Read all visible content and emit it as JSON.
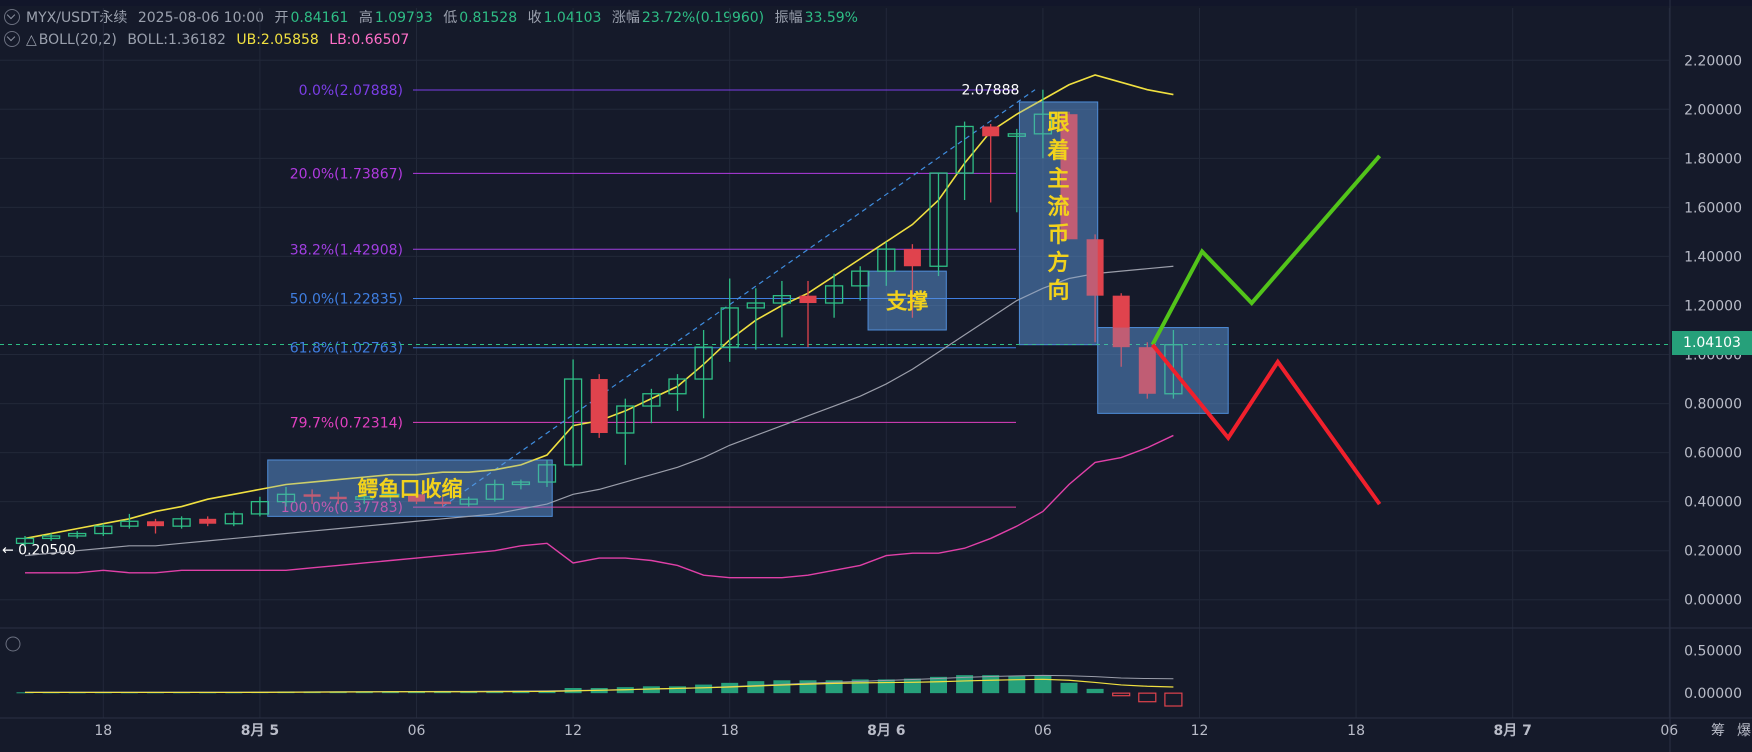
{
  "header": {
    "symbol": "MYX/USDT永续",
    "datetime": "2025-08-06 10:00",
    "open_label": "开",
    "open": "0.84161",
    "high_label": "高",
    "high": "1.09793",
    "low_label": "低",
    "low": "0.81528",
    "close_label": "收",
    "close": "1.04103",
    "change_label": "涨幅",
    "change": "23.72%(0.19960)",
    "amp_label": "振幅",
    "amp": "33.59%"
  },
  "indicator": {
    "name": "BOLL(20,2)",
    "boll": "BOLL:1.36182",
    "ub": "UB:2.05858",
    "lb": "LB:0.66507"
  },
  "colors": {
    "up": "#2ebd85",
    "down": "#e0434d",
    "mid": "#9b9eaa",
    "upper": "#f0e040",
    "lower": "#e040a8",
    "fib": "#8a3cf0"
  },
  "price_badge": "1.04103",
  "chart_data": {
    "type": "candlestick",
    "yaxis_ticks": [
      "2.20000",
      "2.00000",
      "1.80000",
      "1.60000",
      "1.40000",
      "1.20000",
      "1.00000",
      "0.80000",
      "0.60000",
      "0.40000",
      "0.20000",
      "0.00000"
    ],
    "ylim": [
      -0.05,
      2.25
    ],
    "xaxis_ticks": [
      {
        "label": "18",
        "i": 3
      },
      {
        "label": "8月 5",
        "i": 9
      },
      {
        "label": "06",
        "i": 15
      },
      {
        "label": "12",
        "i": 21
      },
      {
        "label": "18",
        "i": 27
      },
      {
        "label": "8月 6",
        "i": 33
      },
      {
        "label": "06",
        "i": 39
      },
      {
        "label": "12",
        "i": 45
      },
      {
        "label": "18",
        "i": 51
      },
      {
        "label": "8月 7",
        "i": 57
      },
      {
        "label": "06",
        "i": 63
      }
    ],
    "axis_footer": [
      "筹",
      "爆"
    ],
    "candles": [
      {
        "o": 0.23,
        "h": 0.26,
        "l": 0.22,
        "c": 0.25
      },
      {
        "o": 0.25,
        "h": 0.27,
        "l": 0.24,
        "c": 0.26
      },
      {
        "o": 0.26,
        "h": 0.28,
        "l": 0.25,
        "c": 0.27
      },
      {
        "o": 0.27,
        "h": 0.31,
        "l": 0.26,
        "c": 0.3
      },
      {
        "o": 0.3,
        "h": 0.35,
        "l": 0.29,
        "c": 0.32
      },
      {
        "o": 0.32,
        "h": 0.33,
        "l": 0.27,
        "c": 0.3
      },
      {
        "o": 0.3,
        "h": 0.34,
        "l": 0.29,
        "c": 0.33
      },
      {
        "o": 0.33,
        "h": 0.34,
        "l": 0.3,
        "c": 0.31
      },
      {
        "o": 0.31,
        "h": 0.36,
        "l": 0.3,
        "c": 0.35
      },
      {
        "o": 0.35,
        "h": 0.42,
        "l": 0.34,
        "c": 0.4
      },
      {
        "o": 0.4,
        "h": 0.46,
        "l": 0.38,
        "c": 0.43
      },
      {
        "o": 0.43,
        "h": 0.45,
        "l": 0.39,
        "c": 0.42
      },
      {
        "o": 0.42,
        "h": 0.44,
        "l": 0.39,
        "c": 0.41
      },
      {
        "o": 0.41,
        "h": 0.44,
        "l": 0.39,
        "c": 0.42
      },
      {
        "o": 0.42,
        "h": 0.45,
        "l": 0.4,
        "c": 0.43
      },
      {
        "o": 0.43,
        "h": 0.44,
        "l": 0.39,
        "c": 0.4
      },
      {
        "o": 0.4,
        "h": 0.42,
        "l": 0.38,
        "c": 0.39
      },
      {
        "o": 0.39,
        "h": 0.42,
        "l": 0.38,
        "c": 0.41
      },
      {
        "o": 0.41,
        "h": 0.49,
        "l": 0.4,
        "c": 0.47
      },
      {
        "o": 0.47,
        "h": 0.49,
        "l": 0.45,
        "c": 0.48
      },
      {
        "o": 0.48,
        "h": 0.57,
        "l": 0.46,
        "c": 0.55
      },
      {
        "o": 0.55,
        "h": 0.98,
        "l": 0.54,
        "c": 0.9
      },
      {
        "o": 0.9,
        "h": 0.92,
        "l": 0.66,
        "c": 0.68
      },
      {
        "o": 0.68,
        "h": 0.82,
        "l": 0.55,
        "c": 0.79
      },
      {
        "o": 0.79,
        "h": 0.86,
        "l": 0.72,
        "c": 0.84
      },
      {
        "o": 0.84,
        "h": 0.92,
        "l": 0.77,
        "c": 0.9
      },
      {
        "o": 0.9,
        "h": 1.1,
        "l": 0.74,
        "c": 1.03
      },
      {
        "o": 1.03,
        "h": 1.31,
        "l": 0.97,
        "c": 1.19
      },
      {
        "o": 1.19,
        "h": 1.27,
        "l": 1.02,
        "c": 1.21
      },
      {
        "o": 1.21,
        "h": 1.3,
        "l": 1.07,
        "c": 1.24
      },
      {
        "o": 1.24,
        "h": 1.3,
        "l": 1.03,
        "c": 1.21
      },
      {
        "o": 1.21,
        "h": 1.33,
        "l": 1.15,
        "c": 1.28
      },
      {
        "o": 1.28,
        "h": 1.36,
        "l": 1.22,
        "c": 1.34
      },
      {
        "o": 1.34,
        "h": 1.46,
        "l": 1.28,
        "c": 1.43
      },
      {
        "o": 1.43,
        "h": 1.45,
        "l": 1.15,
        "c": 1.36
      },
      {
        "o": 1.36,
        "h": 1.74,
        "l": 1.32,
        "c": 1.74
      },
      {
        "o": 1.74,
        "h": 1.95,
        "l": 1.63,
        "c": 1.93
      },
      {
        "o": 1.93,
        "h": 1.94,
        "l": 1.62,
        "c": 1.89
      },
      {
        "o": 1.89,
        "h": 1.92,
        "l": 1.58,
        "c": 1.9
      },
      {
        "o": 1.9,
        "h": 2.08,
        "l": 1.8,
        "c": 1.98
      },
      {
        "o": 1.98,
        "h": 1.99,
        "l": 1.47,
        "c": 1.47
      },
      {
        "o": 1.47,
        "h": 1.49,
        "l": 1.05,
        "c": 1.24
      },
      {
        "o": 1.24,
        "h": 1.25,
        "l": 0.95,
        "c": 1.03
      },
      {
        "o": 1.03,
        "h": 1.05,
        "l": 0.82,
        "c": 0.84
      },
      {
        "o": 0.84,
        "h": 1.1,
        "l": 0.82,
        "c": 1.04
      }
    ],
    "volume": [
      0.01,
      0.01,
      0.01,
      0.01,
      0.01,
      0.01,
      0.01,
      0.01,
      0.01,
      0.015,
      0.02,
      0.02,
      0.02,
      0.02,
      0.02,
      0.02,
      0.02,
      0.02,
      0.025,
      0.03,
      0.03,
      0.06,
      0.06,
      0.07,
      0.08,
      0.08,
      0.1,
      0.12,
      0.14,
      0.15,
      0.15,
      0.15,
      0.16,
      0.16,
      0.17,
      0.19,
      0.21,
      0.21,
      0.2,
      0.2,
      0.12,
      0.05,
      -0.03,
      -0.1,
      -0.15
    ],
    "volume_ylim": [
      -0.22,
      0.62
    ],
    "volume_ticks": [
      "0.50000",
      "0.00000"
    ],
    "boll_upper": [
      0.25,
      0.27,
      0.29,
      0.31,
      0.33,
      0.36,
      0.38,
      0.41,
      0.43,
      0.45,
      0.47,
      0.48,
      0.49,
      0.5,
      0.51,
      0.51,
      0.52,
      0.52,
      0.53,
      0.55,
      0.59,
      0.71,
      0.73,
      0.77,
      0.82,
      0.87,
      0.96,
      1.06,
      1.14,
      1.2,
      1.25,
      1.32,
      1.39,
      1.46,
      1.53,
      1.63,
      1.78,
      1.91,
      1.98,
      2.04,
      2.1,
      2.14,
      2.11,
      2.08,
      2.06
    ],
    "boll_mid": [
      0.18,
      0.19,
      0.2,
      0.21,
      0.22,
      0.22,
      0.23,
      0.24,
      0.25,
      0.26,
      0.27,
      0.28,
      0.29,
      0.3,
      0.31,
      0.32,
      0.33,
      0.34,
      0.35,
      0.37,
      0.39,
      0.43,
      0.45,
      0.48,
      0.51,
      0.54,
      0.58,
      0.63,
      0.67,
      0.71,
      0.75,
      0.79,
      0.83,
      0.88,
      0.94,
      1.01,
      1.08,
      1.15,
      1.22,
      1.27,
      1.31,
      1.33,
      1.34,
      1.35,
      1.36
    ],
    "boll_lower": [
      0.11,
      0.11,
      0.11,
      0.12,
      0.11,
      0.11,
      0.12,
      0.12,
      0.12,
      0.12,
      0.12,
      0.13,
      0.14,
      0.15,
      0.16,
      0.17,
      0.18,
      0.19,
      0.2,
      0.22,
      0.23,
      0.15,
      0.17,
      0.17,
      0.16,
      0.14,
      0.1,
      0.09,
      0.09,
      0.09,
      0.1,
      0.12,
      0.14,
      0.18,
      0.19,
      0.19,
      0.21,
      0.25,
      0.3,
      0.36,
      0.47,
      0.56,
      0.58,
      0.62,
      0.67
    ],
    "fib_levels": [
      {
        "label": "0.0%(2.07888)",
        "value": 2.07888,
        "color": "#7b3ee6"
      },
      {
        "label": "20.0%(1.73867)",
        "value": 1.73867,
        "color": "#b13ae0"
      },
      {
        "label": "38.2%(1.42908)",
        "value": 1.42908,
        "color": "#a03fe0"
      },
      {
        "label": "50.0%(1.22835)",
        "value": 1.22835,
        "color": "#3f7ee0"
      },
      {
        "label": "61.8%(1.02763)",
        "value": 1.02763,
        "color": "#3f7ee0"
      },
      {
        "label": "79.7%(0.72314)",
        "value": 0.72314,
        "color": "#e040c0"
      },
      {
        "label": "100.0%(0.37783)",
        "value": 0.37783,
        "color": "#e040a0"
      }
    ],
    "peak_label": "2.07888",
    "low_marker": "0.20500",
    "current_price": 1.04103,
    "annotations": [
      {
        "text": "鳄鱼口收缩",
        "i0": 9.3,
        "i1": 20.2,
        "y0": 0.57,
        "y1": 0.34
      },
      {
        "text": "支撑",
        "i0": 32.3,
        "i1": 35.3,
        "y0": 1.34,
        "y1": 1.1
      },
      {
        "text": "跟着主流币方向",
        "i0": 38.1,
        "i1": 41.1,
        "y0": 2.03,
        "y1": 1.04
      },
      {
        "text": "",
        "i0": 41.1,
        "i1": 46.1,
        "y0": 1.11,
        "y1": 0.76
      }
    ],
    "scenario_up": [
      [
        43.2,
        1.04
      ],
      [
        45.1,
        1.42
      ],
      [
        47.0,
        1.21
      ],
      [
        51.9,
        1.81
      ]
    ],
    "scenario_down": [
      [
        43.2,
        1.04
      ],
      [
        46.1,
        0.66
      ],
      [
        48.0,
        0.97
      ],
      [
        51.9,
        0.39
      ]
    ]
  }
}
